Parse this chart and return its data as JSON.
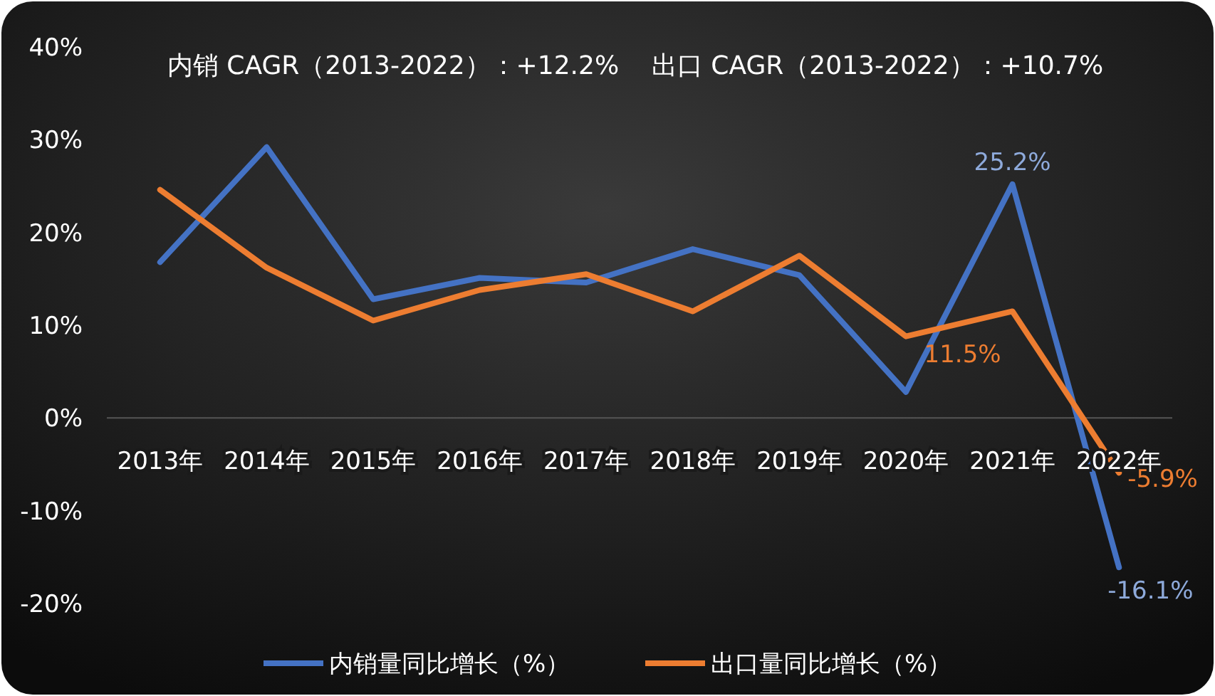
{
  "chart_data": {
    "type": "line",
    "title": "内销 CAGR（2013-2022）：+12.2%    出口 CAGR（2013-2022）：+10.7%",
    "categories": [
      "2013年",
      "2014年",
      "2015年",
      "2016年",
      "2017年",
      "2018年",
      "2019年",
      "2020年",
      "2021年",
      "2022年"
    ],
    "series": [
      {
        "name": "内销量同比增长（%）",
        "color": "#4472c4",
        "values": [
          16.8,
          29.2,
          12.8,
          15.1,
          14.6,
          18.2,
          15.4,
          2.8,
          25.2,
          -16.1
        ],
        "value_labels": [
          null,
          null,
          null,
          null,
          null,
          null,
          null,
          null,
          "25.2%",
          "-16.1%"
        ]
      },
      {
        "name": "出口量同比增长（%）",
        "color": "#ed7d31",
        "values": [
          24.6,
          16.2,
          10.5,
          13.8,
          15.5,
          11.5,
          17.5,
          8.8,
          11.5,
          -5.9
        ],
        "value_labels": [
          null,
          null,
          null,
          null,
          null,
          null,
          null,
          null,
          "11.5%",
          "-5.9%"
        ]
      }
    ],
    "ylim": [
      -20,
      40
    ],
    "yticks": [
      {
        "value": -20,
        "label": "-20%"
      },
      {
        "value": -10,
        "label": "-10%"
      },
      {
        "value": 0,
        "label": "0%"
      },
      {
        "value": 10,
        "label": "10%"
      },
      {
        "value": 20,
        "label": "20%"
      },
      {
        "value": 30,
        "label": "30%"
      },
      {
        "value": 40,
        "label": "40%"
      }
    ],
    "grid": false,
    "legend": "bottom",
    "marker": "none",
    "line_style": "solid"
  }
}
